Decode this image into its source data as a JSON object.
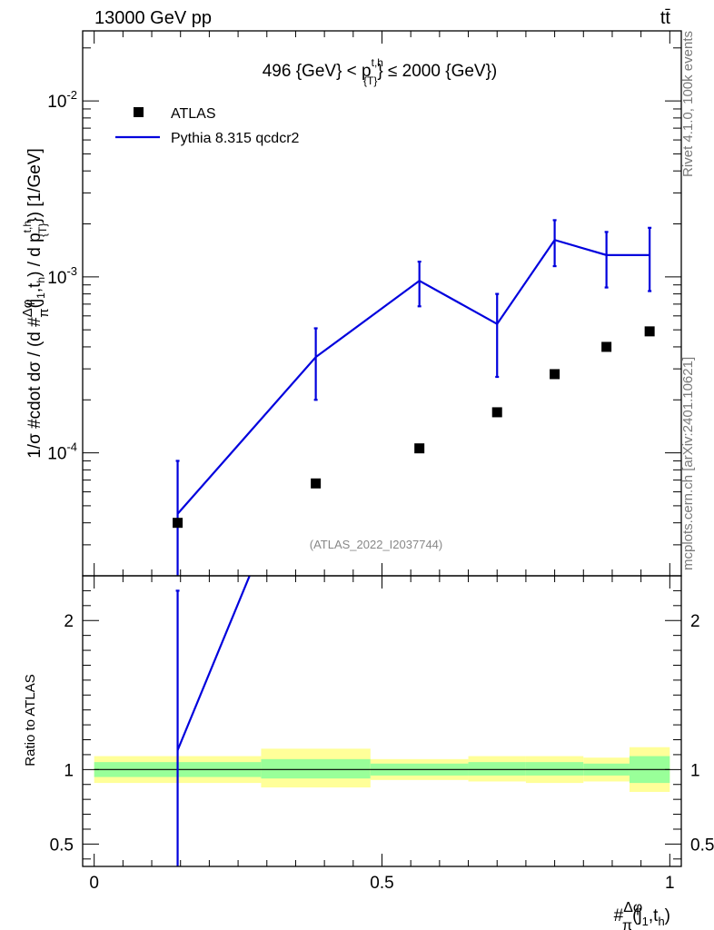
{
  "header": {
    "energy_label": "13000 GeV pp",
    "process_label": "tt̄"
  },
  "side_labels": {
    "rivet": "Rivet 4.1.0,  100k events",
    "mcplots": "mcplots.cern.ch [arXiv:2401.10621]"
  },
  "colors": {
    "mc_line": "#0000dd",
    "band_inner": "#99ff99",
    "band_outer": "#ffff99",
    "data_marker": "#000000"
  },
  "chart_data": [
    {
      "type": "scatter",
      "panel": "main",
      "title_parts": {
        "pre": "496 {GeV} < p",
        "sup": "t,h",
        "sub": "{T}",
        "post": "} ≤ 2000 {GeV})"
      },
      "watermark": "(ATLAS_2022_I2037744)",
      "ylabel": "1/σ #cdot dσ / (d #Δφ/π(j1,th) / d pT^t,h) [1/GeV]",
      "ylabel_parts": {
        "a": "1/σ #cdot dσ / (d #",
        "frac_num": "Δφ",
        "frac_den": "π",
        "b": "(j",
        "b_sub": "1",
        "c": ",t",
        "c_sub": "h",
        "d": ") / d p",
        "d_sup": "t,h",
        "d_sub": "{T}",
        "e": "}) [1/GeV]"
      },
      "yscale": "log",
      "ylim": [
        2e-05,
        0.025
      ],
      "xlim": [
        -0.02,
        1.02
      ],
      "yticks": [
        {
          "value": 0.0001,
          "base": "10",
          "exp": "-4"
        },
        {
          "value": 0.001,
          "base": "10",
          "exp": "-3"
        },
        {
          "value": 0.01,
          "base": "10",
          "exp": "-2"
        }
      ],
      "legend": {
        "placement": "top-left",
        "entries": [
          {
            "label": "ATLAS",
            "kind": "marker"
          },
          {
            "label": "Pythia 8.315 qcdcr2",
            "kind": "line"
          }
        ]
      },
      "bin_edges": [
        0.0,
        0.29,
        0.48,
        0.65,
        0.75,
        0.85,
        0.93,
        1.0
      ],
      "series": [
        {
          "name": "ATLAS",
          "x": [
            0.145,
            0.385,
            0.565,
            0.7,
            0.8,
            0.89,
            0.965
          ],
          "values": [
            4e-05,
            6.7e-05,
            0.000106,
            0.00017,
            0.00028,
            0.0004,
            0.00049
          ]
        },
        {
          "name": "Pythia 8.315 qcdcr2",
          "x": [
            0.145,
            0.385,
            0.565,
            0.7,
            0.8,
            0.89,
            0.965
          ],
          "values": [
            4.5e-05,
            0.00035,
            0.00095,
            0.00054,
            0.00162,
            0.00133,
            0.00133
          ],
          "err_low": [
            2e-05,
            0.0002,
            0.00068,
            0.00027,
            0.00115,
            0.00087,
            0.00083
          ],
          "err_high": [
            9e-05,
            0.00051,
            0.00122,
            0.0008,
            0.0021,
            0.0018,
            0.0019
          ],
          "connect_from_x": 0.145,
          "extend_to_x": 0.93,
          "flat_end_x": 0.965
        }
      ]
    },
    {
      "type": "line",
      "panel": "ratio",
      "ylabel": "Ratio to ATLAS",
      "xlabel_parts": {
        "pre": "#",
        "frac_num": "Δφ",
        "frac_den": "π",
        "a": "(j",
        "a_sub": "1",
        "b": ",t",
        "b_sub": "h",
        "c": ")"
      },
      "xlim": [
        -0.02,
        1.02
      ],
      "ylim": [
        0.35,
        2.3
      ],
      "xticks": [
        {
          "value": 0,
          "label": "0"
        },
        {
          "value": 0.5,
          "label": "0.5"
        },
        {
          "value": 1,
          "label": "1"
        }
      ],
      "yticks": [
        {
          "value": 0.5,
          "label": "0.5"
        },
        {
          "value": 1,
          "label": "1"
        },
        {
          "value": 2,
          "label": "2"
        }
      ],
      "reference_line": 1,
      "bands": [
        {
          "x0": 0.0,
          "x1": 0.29,
          "inner": [
            0.95,
            1.05
          ],
          "outer": [
            0.91,
            1.09
          ]
        },
        {
          "x0": 0.29,
          "x1": 0.48,
          "inner": [
            0.94,
            1.07
          ],
          "outer": [
            0.88,
            1.14
          ]
        },
        {
          "x0": 0.48,
          "x1": 0.65,
          "inner": [
            0.96,
            1.04
          ],
          "outer": [
            0.93,
            1.07
          ]
        },
        {
          "x0": 0.65,
          "x1": 0.75,
          "inner": [
            0.96,
            1.05
          ],
          "outer": [
            0.92,
            1.09
          ]
        },
        {
          "x0": 0.75,
          "x1": 0.85,
          "inner": [
            0.96,
            1.05
          ],
          "outer": [
            0.91,
            1.09
          ]
        },
        {
          "x0": 0.85,
          "x1": 0.93,
          "inner": [
            0.96,
            1.04
          ],
          "outer": [
            0.92,
            1.08
          ]
        },
        {
          "x0": 0.93,
          "x1": 1.0,
          "inner": [
            0.91,
            1.09
          ],
          "outer": [
            0.85,
            1.15
          ]
        }
      ],
      "series": [
        {
          "name": "Pythia 8.315 qcdcr2",
          "x": [
            0.145,
            0.27
          ],
          "values": [
            1.13,
            2.3
          ],
          "err_x": 0.145,
          "err_low": 0.35,
          "err_high": 2.2
        }
      ]
    }
  ]
}
